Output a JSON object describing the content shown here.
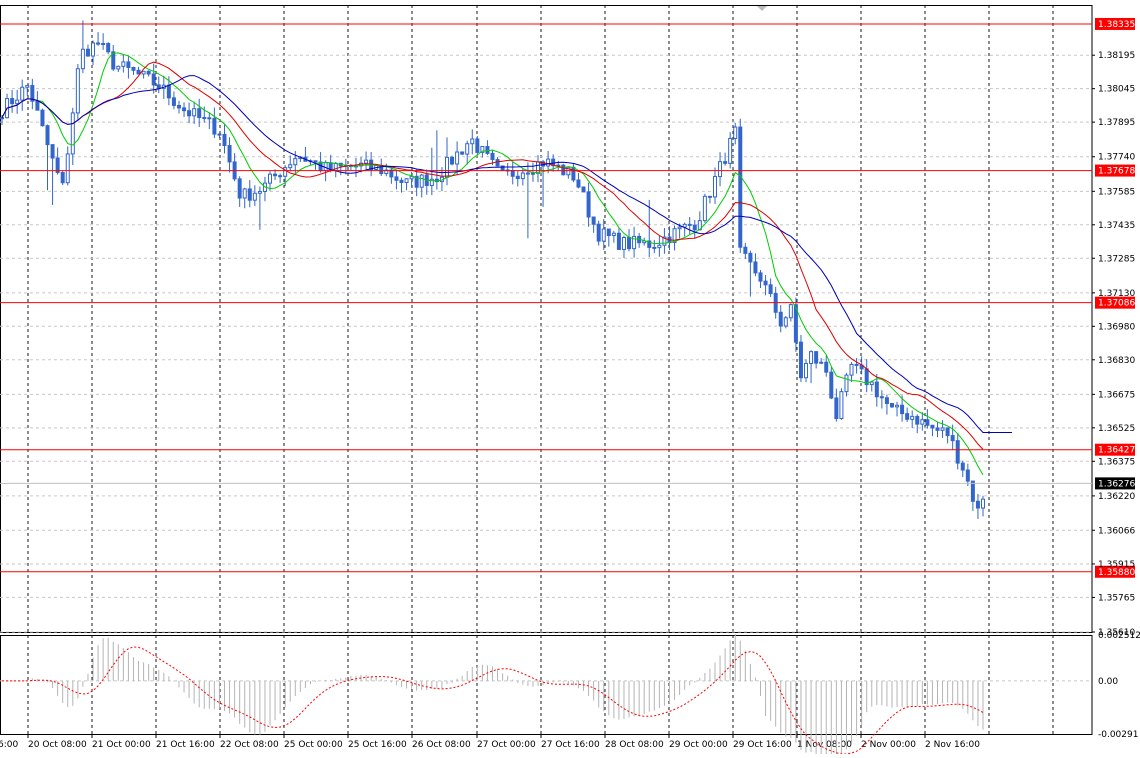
{
  "chart_data": [
    {
      "type": "candlestick",
      "title": "",
      "x_axis_labels": [
        "6:00",
        "20 Oct 08:00",
        "21 Oct 00:00",
        "21 Oct 16:00",
        "22 Oct 08:00",
        "25 Oct 00:00",
        "25 Oct 16:00",
        "26 Oct 08:00",
        "27 Oct 00:00",
        "27 Oct 16:00",
        "28 Oct 08:00",
        "29 Oct 00:00",
        "29 Oct 16:00",
        "1 Nov 08:00",
        "2 Nov 00:00",
        "2 Nov 16:00"
      ],
      "y_axis_labels": [
        "1.38195",
        "1.38045",
        "1.37895",
        "1.37740",
        "1.37585",
        "1.37435",
        "1.37285",
        "1.37130",
        "1.36980",
        "1.36830",
        "1.36675",
        "1.36525",
        "1.36375",
        "1.36220",
        "1.36066",
        "1.35915",
        "1.35765",
        "1.35610"
      ],
      "ylim": [
        1.3561,
        1.3842
      ],
      "horizontal_levels": [
        "1.38335",
        "1.37678",
        "1.37086",
        "1.36427",
        "1.35880"
      ],
      "current_price": "1.36276",
      "series": [
        {
          "name": "",
          "color": "#00cc00"
        },
        {
          "name": "",
          "color": "#dd0000"
        },
        {
          "name": "",
          "color": "#0000bb"
        }
      ],
      "colors": {
        "candles": "#3366cc",
        "levels": "#ff0000",
        "grid": "#c8c8c8",
        "price_tag": "#000000"
      }
    },
    {
      "type": "oscillator",
      "y_axis_labels": [
        "0.002512",
        "0.00",
        "-0.00291"
      ],
      "ylim": [
        -0.00291,
        0.002512
      ],
      "colors": {
        "histogram": "#b4b4b4",
        "signal": "#ff0000"
      }
    }
  ]
}
